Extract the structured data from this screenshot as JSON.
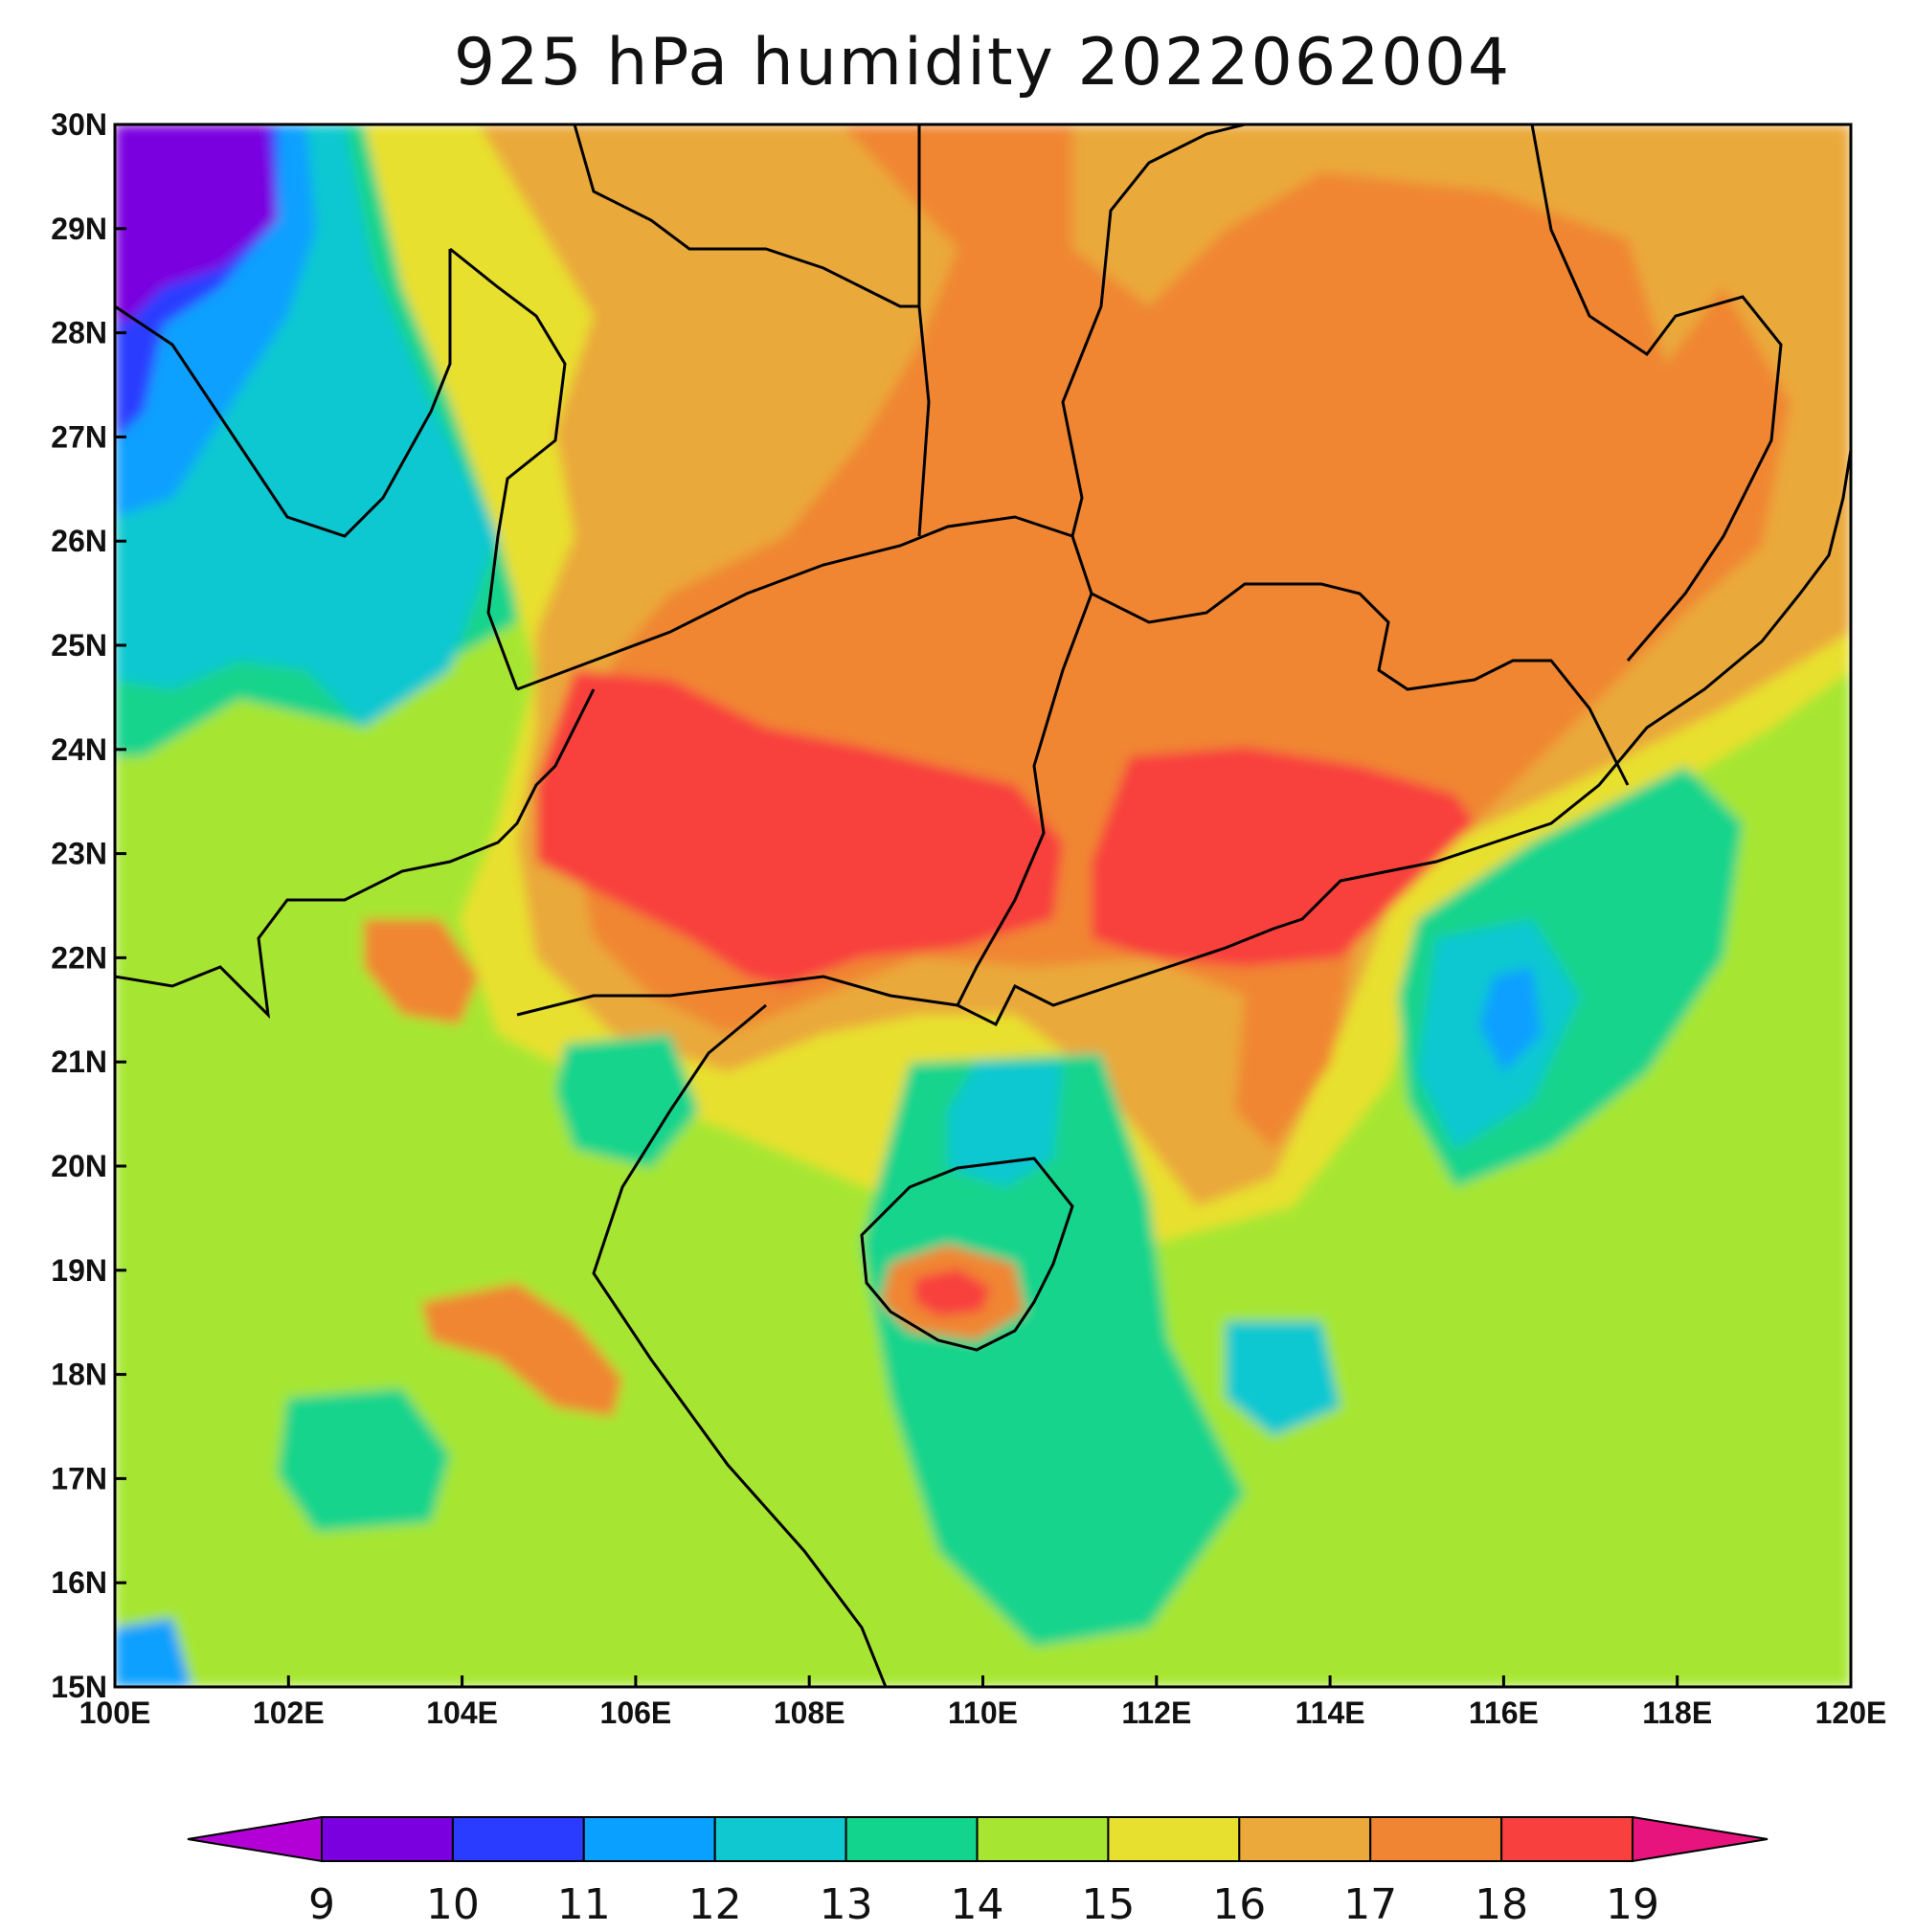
{
  "title": "925 hPa  humidity  2022062004",
  "colors": {
    "c_lt9": "#b200d6",
    "c_9_10": "#7a00e0",
    "c_10_11": "#2a3cff",
    "c_11_12": "#0aa0ff",
    "c_12_13": "#10c8d0",
    "c_13_14": "#12d48c",
    "c_14_15": "#a6e632",
    "c_15_16": "#e8e02e",
    "c_16_17": "#eaa93a",
    "c_17_18": "#f08633",
    "c_18_19": "#f8403e",
    "c_gt19": "#e8147e",
    "boundary": "#000000"
  },
  "map": {
    "lon_range": [
      100,
      120
    ],
    "lat_range": [
      15,
      30
    ],
    "lon_ticks": [
      "100E",
      "102E",
      "104E",
      "106E",
      "108E",
      "110E",
      "112E",
      "114E",
      "116E",
      "118E",
      "120E"
    ],
    "lat_ticks": [
      "15N",
      "16N",
      "17N",
      "18N",
      "19N",
      "20N",
      "21N",
      "22N",
      "23N",
      "24N",
      "25N",
      "26N",
      "27N",
      "28N",
      "29N",
      "30N"
    ]
  },
  "colorbar": {
    "labels": [
      "9",
      "10",
      "11",
      "12",
      "13",
      "14",
      "15",
      "16",
      "17",
      "18",
      "19"
    ]
  }
}
